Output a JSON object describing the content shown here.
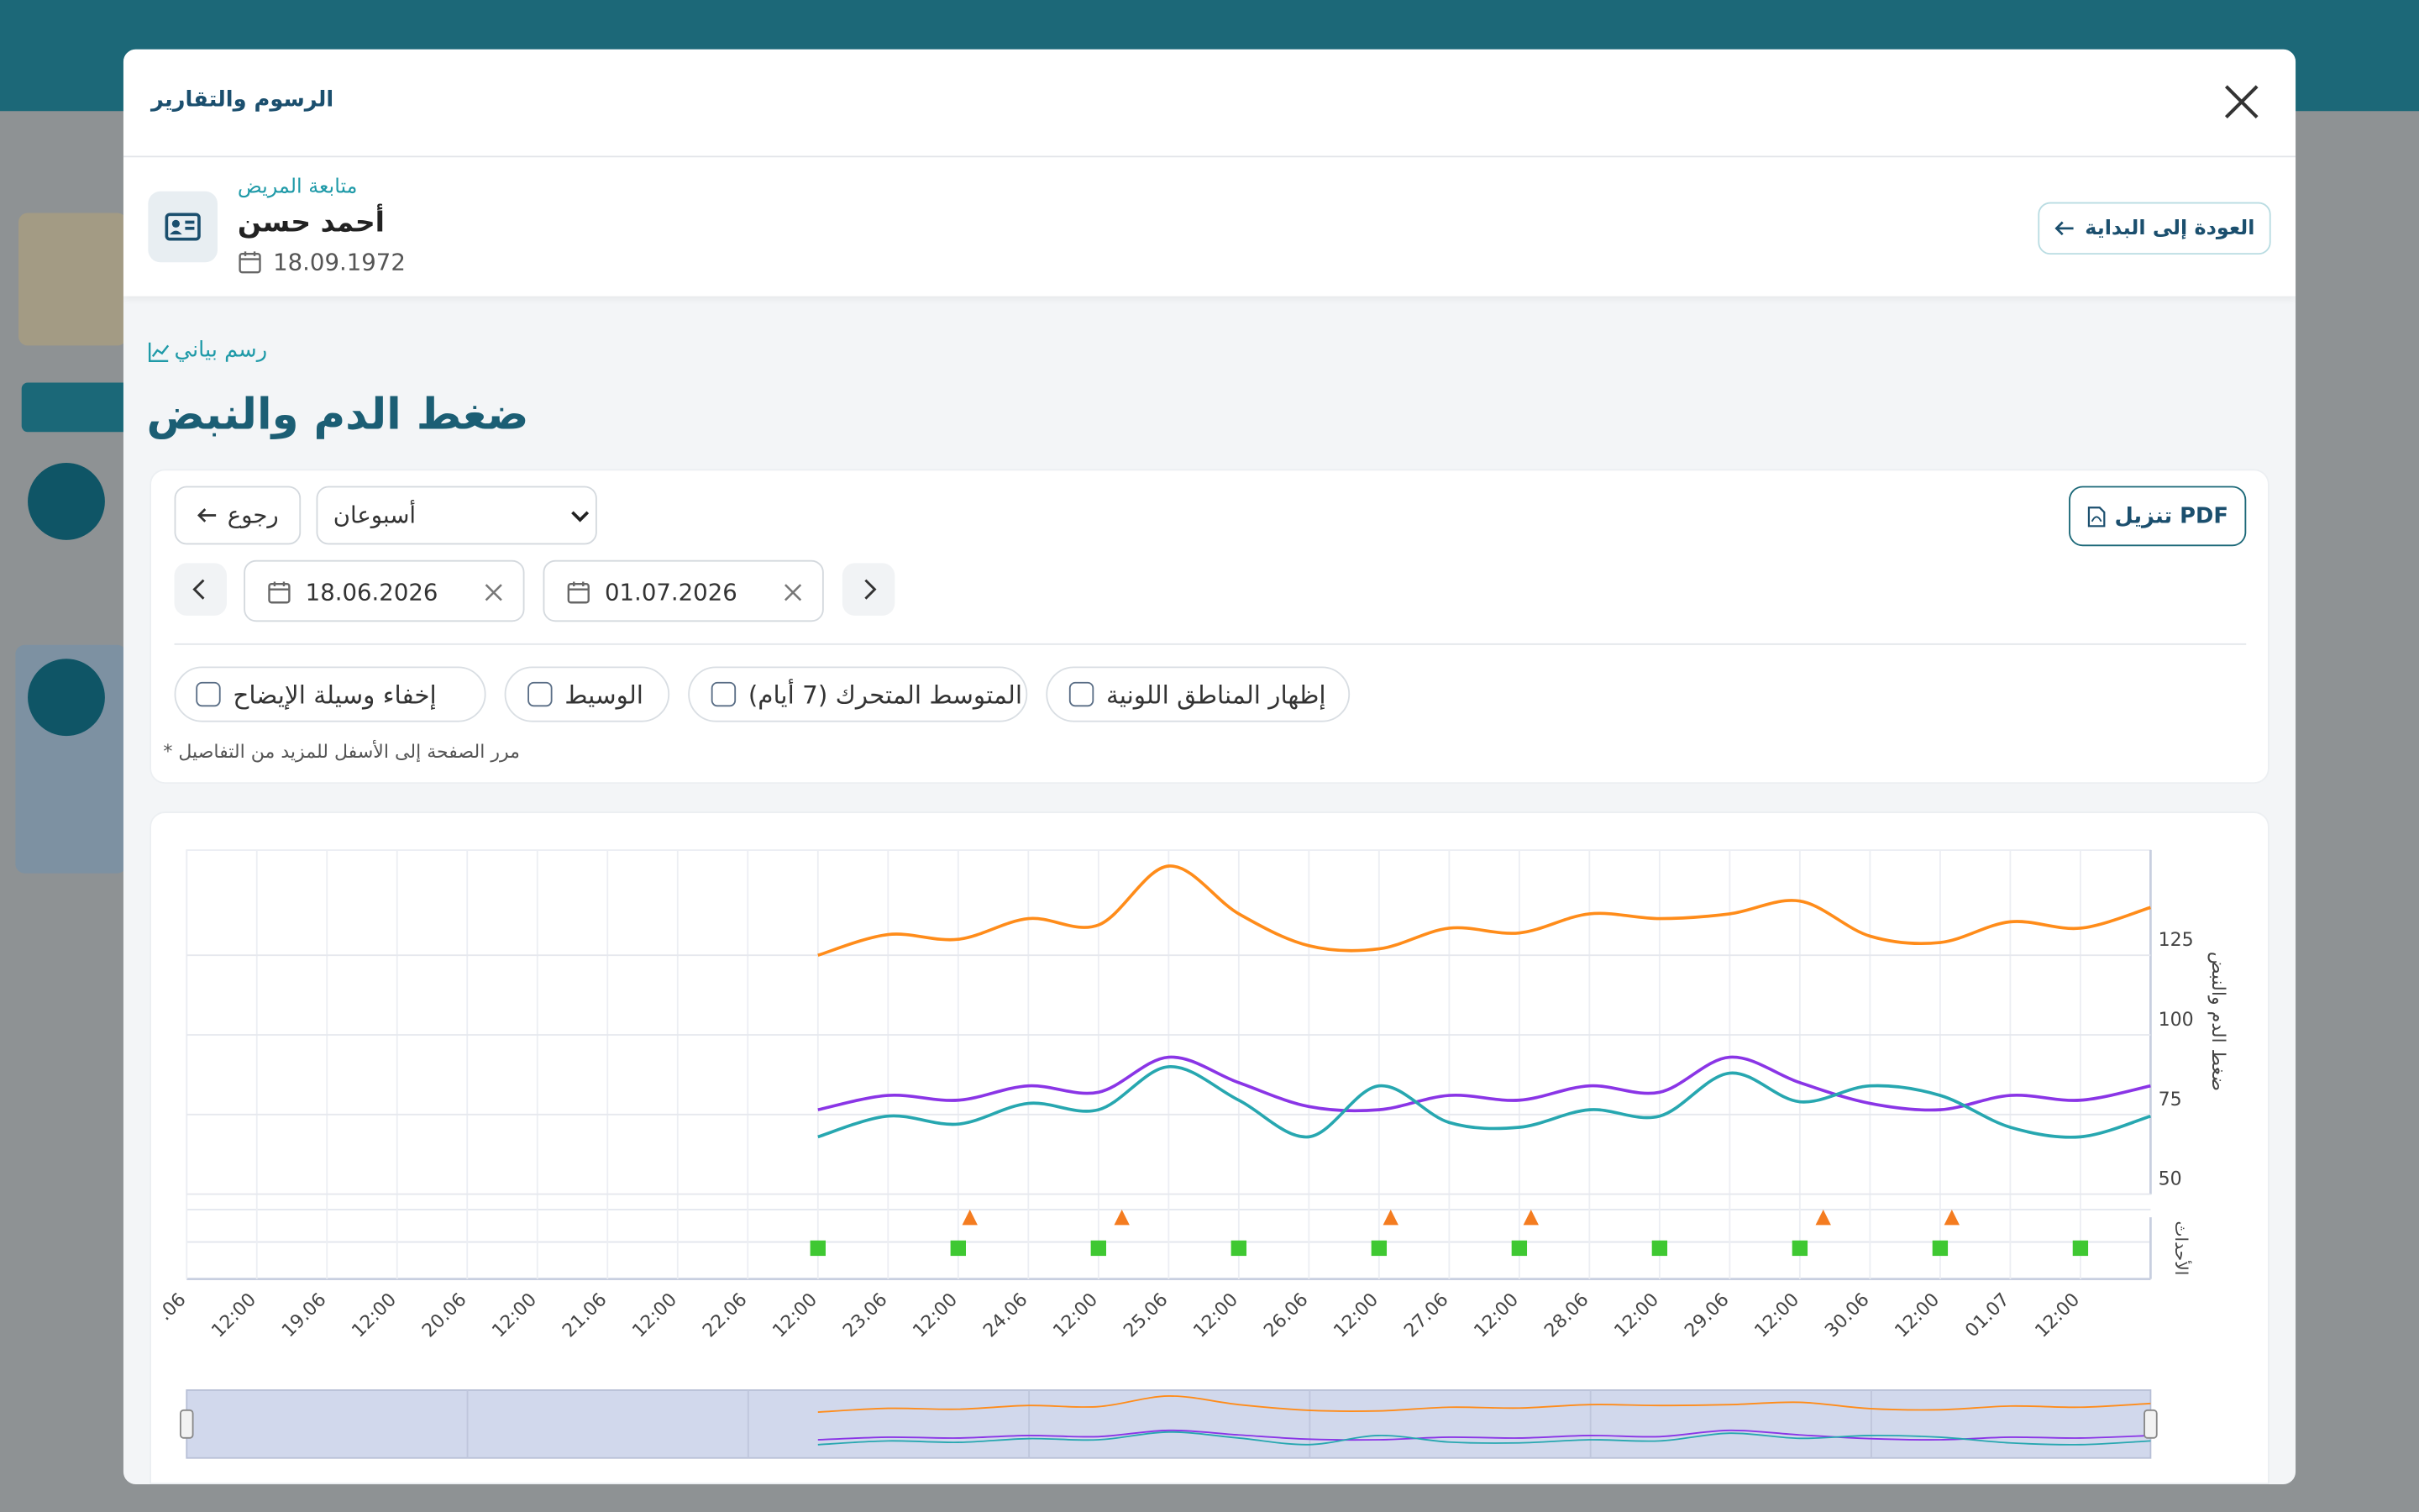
{
  "dialog": {
    "title": "الرسوم والتقارير"
  },
  "patient": {
    "label": "متابعة المريض",
    "name": "أحمد حسن",
    "birth_date": "18.09.1972",
    "back_button": "العودة إلى البداية"
  },
  "section": {
    "kicker": "رسم بياني",
    "title": "ضغط الدم والنبض"
  },
  "controls": {
    "pdf_button": "PDF تنزيل",
    "period": "أسبوعان",
    "back": "رجوع",
    "date_from": "18.06.2026",
    "date_to": "01.07.2026",
    "options": [
      "إظهار المناطق اللونية",
      "المتوسط المتحرك (7 أيام)",
      "الوسيط",
      "إخفاء وسيلة الإيضاح"
    ],
    "note": "مرر الصفحة إلى الأسفل للمزيد من التفاصيل *"
  },
  "chart_data": {
    "type": "line",
    "y_title": "ضغط الدم والنبض",
    "events_title": "الأحداث",
    "x": [
      "22.06 12:00",
      "23.06 00:00",
      "23.06 12:00",
      "24.06 00:00",
      "24.06 12:00",
      "25.06 00:00",
      "25.06 12:00",
      "26.06 00:00",
      "26.06 12:00",
      "27.06 00:00",
      "27.06 12:00",
      "28.06 00:00",
      "28.06 12:00",
      "29.06 00:00",
      "29.06 12:00",
      "30.06 00:00",
      "30.06 12:00",
      "01.07 00:00",
      "01.07 12:00",
      "02.07 00:00"
    ],
    "series": [
      {
        "color": "#ff8c1a",
        "values": [
          125,
          131.5,
          130,
          136.5,
          134.5,
          153,
          138,
          128,
          127,
          133.5,
          132,
          138,
          136.5,
          138,
          142,
          131,
          129,
          135.5,
          133.5,
          140
        ]
      },
      {
        "color": "#8a35e6",
        "values": [
          76.5,
          81,
          79.5,
          84,
          82,
          93,
          85,
          77.5,
          76.5,
          81,
          79.5,
          84,
          82,
          93,
          85,
          78.5,
          76.5,
          81,
          79.5,
          84
        ]
      },
      {
        "color": "#27a7b0",
        "values": [
          68,
          74.5,
          72,
          78.5,
          76.5,
          90,
          79.5,
          68,
          84,
          72.5,
          71,
          76.5,
          74.5,
          88,
          79,
          84,
          81,
          71,
          68,
          74.5
        ]
      }
    ],
    "events": [
      {
        "marker": "square",
        "color": "#3fc832",
        "x": [
          "22.06 12:00",
          "23.06 12:00",
          "24.06 12:00",
          "25.06 12:00",
          "26.06 12:00",
          "27.06 12:00",
          "28.06 12:00",
          "29.06 12:00",
          "30.06 12:00",
          "01.07 12:00"
        ]
      },
      {
        "marker": "triangle",
        "color": "#f47c20",
        "x": [
          "23.06 14:00",
          "24.06 16:00",
          "26.06 14:00",
          "27.06 14:00",
          "29.06 16:00",
          "30.06 14:00"
        ]
      }
    ],
    "xlim": [
      "18.06 00:00",
      "02.07 00:00"
    ],
    "xticks": [
      {
        "value": "18.06 00:00",
        "label": ".06"
      },
      {
        "value": "18.06 12:00",
        "label": "12:00"
      },
      {
        "value": "19.06 00:00",
        "label": "19.06"
      },
      {
        "value": "19.06 12:00",
        "label": "12:00"
      },
      {
        "value": "20.06 00:00",
        "label": "20.06"
      },
      {
        "value": "20.06 12:00",
        "label": "12:00"
      },
      {
        "value": "21.06 00:00",
        "label": "21.06"
      },
      {
        "value": "21.06 12:00",
        "label": "12:00"
      },
      {
        "value": "22.06 00:00",
        "label": "22.06"
      },
      {
        "value": "22.06 12:00",
        "label": "12:00"
      },
      {
        "value": "23.06 00:00",
        "label": "23.06"
      },
      {
        "value": "23.06 12:00",
        "label": "12:00"
      },
      {
        "value": "24.06 00:00",
        "label": "24.06"
      },
      {
        "value": "24.06 12:00",
        "label": "12:00"
      },
      {
        "value": "25.06 00:00",
        "label": "25.06"
      },
      {
        "value": "25.06 12:00",
        "label": "12:00"
      },
      {
        "value": "26.06 00:00",
        "label": "26.06"
      },
      {
        "value": "26.06 12:00",
        "label": "12:00"
      },
      {
        "value": "27.06 00:00",
        "label": "27.06"
      },
      {
        "value": "27.06 12:00",
        "label": "12:00"
      },
      {
        "value": "28.06 00:00",
        "label": "28.06"
      },
      {
        "value": "28.06 12:00",
        "label": "12:00"
      },
      {
        "value": "29.06 00:00",
        "label": "29.06"
      },
      {
        "value": "29.06 12:00",
        "label": "12:00"
      },
      {
        "value": "30.06 00:00",
        "label": "30.06"
      },
      {
        "value": "30.06 12:00",
        "label": "12:00"
      },
      {
        "value": "01.07 00:00",
        "label": "01.07"
      },
      {
        "value": "01.07 12:00",
        "label": "12:00"
      }
    ],
    "ylim": [
      50,
      158
    ],
    "yticks": [
      50,
      75,
      100,
      125
    ],
    "grid": true
  }
}
